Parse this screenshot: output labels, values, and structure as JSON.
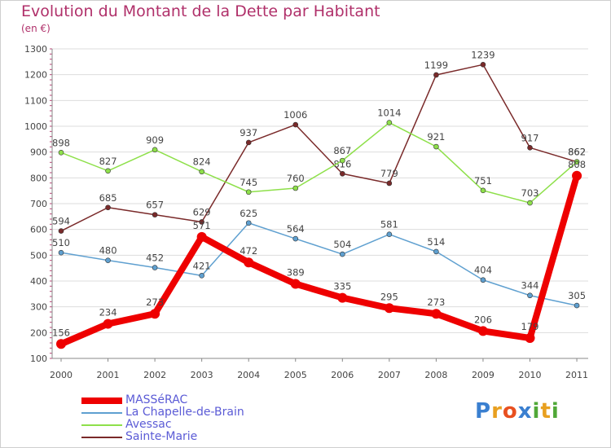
{
  "page": {
    "title": "Evolution du Montant de la Dette par Habitant",
    "subtitle": "(en €)",
    "logo": "Proxiti"
  },
  "colors": {
    "title": "#b0306a",
    "legend_text": "#5b5bd6",
    "grid": "#dddddd"
  },
  "chart_data": {
    "type": "line",
    "title": "Evolution du Montant de la Dette par Habitant",
    "subtitle": "(en €)",
    "x": [
      "2000",
      "2001",
      "2002",
      "2003",
      "2004",
      "2005",
      "2006",
      "2007",
      "2008",
      "2009",
      "2010",
      "2011"
    ],
    "ylim": [
      100,
      1300
    ],
    "yticks": [
      100,
      200,
      300,
      400,
      500,
      600,
      700,
      800,
      900,
      1000,
      1100,
      1200,
      1300
    ],
    "grid": "horizontal",
    "legend": "bottom-left",
    "series": [
      {
        "name": "MASSéRAC",
        "color": "#ee0000",
        "values": [
          156,
          234,
          273,
          571,
          472,
          389,
          335,
          295,
          273,
          206,
          179,
          808
        ],
        "labels": [
          "156",
          "234",
          "273",
          "571",
          "472",
          "389",
          "335",
          "295",
          "273",
          "206",
          "179",
          "808"
        ]
      },
      {
        "name": "La Chapelle-de-Brain",
        "color": "#5fa0d0",
        "values": [
          510,
          480,
          452,
          421,
          625,
          564,
          504,
          581,
          514,
          404,
          344,
          305
        ],
        "labels": [
          "510",
          "480",
          "452",
          "421",
          "625",
          "564",
          "504",
          "581",
          "514",
          "404",
          "344",
          "305"
        ]
      },
      {
        "name": "Avessac",
        "color": "#8ee04a",
        "values": [
          898,
          827,
          909,
          824,
          745,
          760,
          867,
          1014,
          921,
          751,
          703,
          862
        ],
        "labels": [
          "898",
          "827",
          "909",
          "824",
          "745",
          "760",
          "867",
          "1014",
          "921",
          "751",
          "703",
          "862"
        ]
      },
      {
        "name": "Sainte-Marie",
        "color": "#7a2a2a",
        "values": [
          594,
          685,
          657,
          629,
          937,
          1006,
          816,
          779,
          1199,
          1239,
          917,
          862
        ],
        "labels": [
          "594",
          "685",
          "657",
          "629",
          "937",
          "1006",
          "816",
          "779",
          "1199",
          "1239",
          "917",
          "862"
        ]
      }
    ]
  }
}
